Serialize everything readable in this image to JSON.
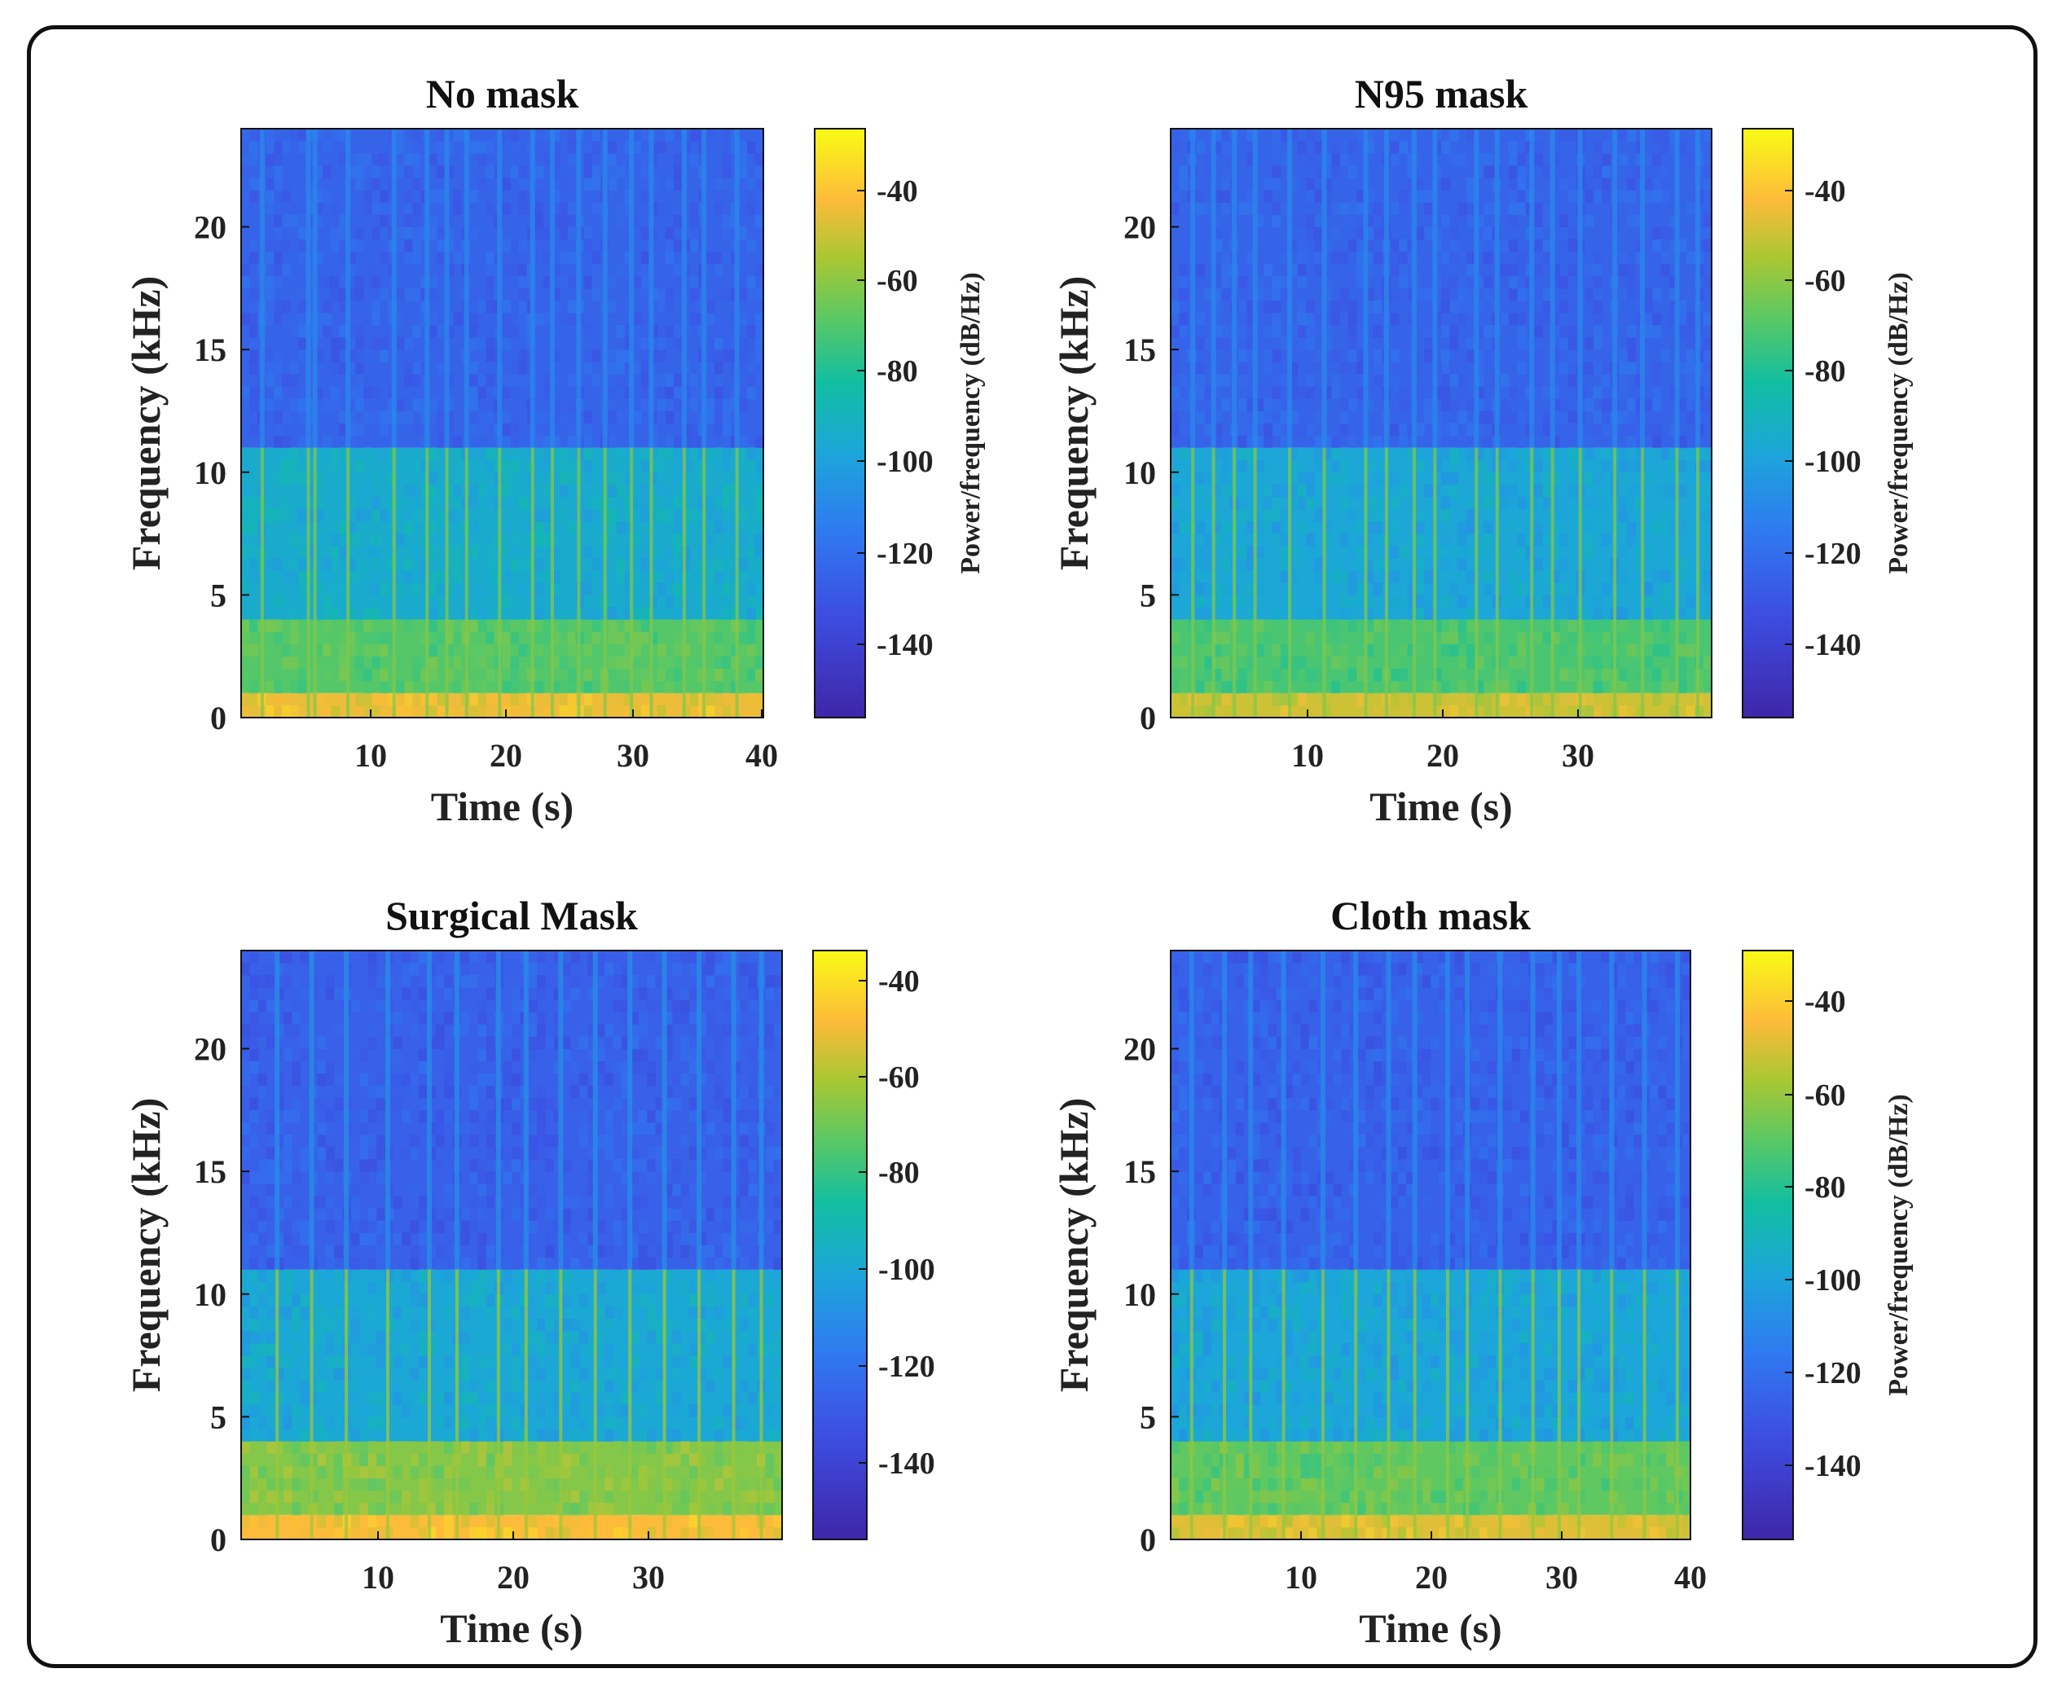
{
  "colors": {
    "low": "#3e26a8",
    "mid_low": "#2f7bf0",
    "mid": "#12bea1",
    "mid_high": "#a9c733",
    "high": "#fdbb3a",
    "top": "#f9fb15",
    "axis": "#111111"
  },
  "chart_data": [
    {
      "type": "heatmap",
      "title": "No mask",
      "xlabel": "Time (s)",
      "ylabel": "Frequency (kHz)",
      "colorbar_label": "Power/frequency (dB/Hz)",
      "x_ticks": [
        "10",
        "20",
        "30",
        "40"
      ],
      "y_ticks": [
        "0",
        "5",
        "10",
        "15",
        "20"
      ],
      "colorbar_ticks": [
        "-40",
        "-60",
        "-80",
        "-100",
        "-120",
        "-140"
      ],
      "xlim": [
        0.4,
        40
      ],
      "ylim": [
        0,
        24
      ],
      "clim": [
        -157,
        -27
      ],
      "bands_khz": [
        {
          "range": [
            0,
            1
          ],
          "level_db": -45
        },
        {
          "range": [
            1,
            4
          ],
          "level_db": -70
        },
        {
          "range": [
            4,
            11
          ],
          "level_db": -95
        },
        {
          "range": [
            11,
            24
          ],
          "level_db": -125
        }
      ],
      "bursts_s": [
        2.0,
        5.5,
        6.0,
        8.5,
        12.0,
        14.5,
        16.0,
        17.5,
        20.0,
        22.5,
        24.0,
        26.0,
        28.0,
        30.0,
        31.5,
        34.0,
        35.5,
        38.0
      ]
    },
    {
      "type": "heatmap",
      "title": "N95 mask",
      "xlabel": "Time (s)",
      "ylabel": "Frequency (kHz)",
      "colorbar_label": "Power/frequency (dB/Hz)",
      "x_ticks": [
        "10",
        "20",
        "30"
      ],
      "y_ticks": [
        "0",
        "5",
        "10",
        "15",
        "20"
      ],
      "colorbar_ticks": [
        "-40",
        "-60",
        "-80",
        "-100",
        "-120",
        "-140"
      ],
      "xlim": [
        0.4,
        39.5
      ],
      "ylim": [
        0,
        24
      ],
      "clim": [
        -157,
        -27
      ],
      "bands_khz": [
        {
          "range": [
            0,
            1
          ],
          "level_db": -50
        },
        {
          "range": [
            1,
            4
          ],
          "level_db": -72
        },
        {
          "range": [
            4,
            11
          ],
          "level_db": -98
        },
        {
          "range": [
            11,
            24
          ],
          "level_db": -125
        }
      ],
      "bursts_s": [
        2.0,
        3.5,
        5.0,
        6.5,
        9.0,
        11.5,
        14.5,
        16.0,
        18.0,
        19.5,
        22.5,
        24.0,
        26.5,
        28.0,
        30.0,
        32.5,
        34.5,
        37.0,
        38.5
      ]
    },
    {
      "type": "heatmap",
      "title": "Surgical Mask",
      "xlabel": "Time (s)",
      "ylabel": "Frequency (kHz)",
      "colorbar_label": "",
      "x_ticks": [
        "10",
        "20",
        "30"
      ],
      "y_ticks": [
        "0",
        "5",
        "10",
        "15",
        "20"
      ],
      "colorbar_ticks": [
        "-40",
        "-60",
        "-80",
        "-100",
        "-120",
        "-140"
      ],
      "xlim": [
        0.4,
        39.5
      ],
      "ylim": [
        0,
        24
      ],
      "clim": [
        -157,
        -33
      ],
      "bands_khz": [
        {
          "range": [
            0,
            1
          ],
          "level_db": -48
        },
        {
          "range": [
            1,
            4
          ],
          "level_db": -66
        },
        {
          "range": [
            4,
            11
          ],
          "level_db": -100
        },
        {
          "range": [
            11,
            24
          ],
          "level_db": -128
        }
      ],
      "bursts_s": [
        3.0,
        5.5,
        8.0,
        11.0,
        14.0,
        16.0,
        19.0,
        21.0,
        23.5,
        26.0,
        28.5,
        31.0,
        33.5,
        36.0,
        38.0
      ]
    },
    {
      "type": "heatmap",
      "title": "Cloth mask",
      "xlabel": "Time (s)",
      "ylabel": "Frequency (kHz)",
      "colorbar_label": "Power/frequency (dB/Hz)",
      "x_ticks": [
        "10",
        "20",
        "30",
        "40"
      ],
      "y_ticks": [
        "0",
        "5",
        "10",
        "15",
        "20"
      ],
      "colorbar_ticks": [
        "-40",
        "-60",
        "-80",
        "-100",
        "-120",
        "-140"
      ],
      "xlim": [
        0.4,
        40
      ],
      "ylim": [
        0,
        24
      ],
      "clim": [
        -157,
        -30
      ],
      "bands_khz": [
        {
          "range": [
            0,
            1
          ],
          "level_db": -50
        },
        {
          "range": [
            1,
            4
          ],
          "level_db": -70
        },
        {
          "range": [
            4,
            11
          ],
          "level_db": -100
        },
        {
          "range": [
            11,
            24
          ],
          "level_db": -127
        }
      ],
      "bursts_s": [
        2.0,
        4.5,
        6.5,
        9.0,
        12.0,
        14.5,
        17.0,
        19.0,
        21.5,
        23.0,
        25.5,
        28.0,
        30.0,
        31.5,
        34.0,
        36.5,
        39.0
      ]
    }
  ]
}
